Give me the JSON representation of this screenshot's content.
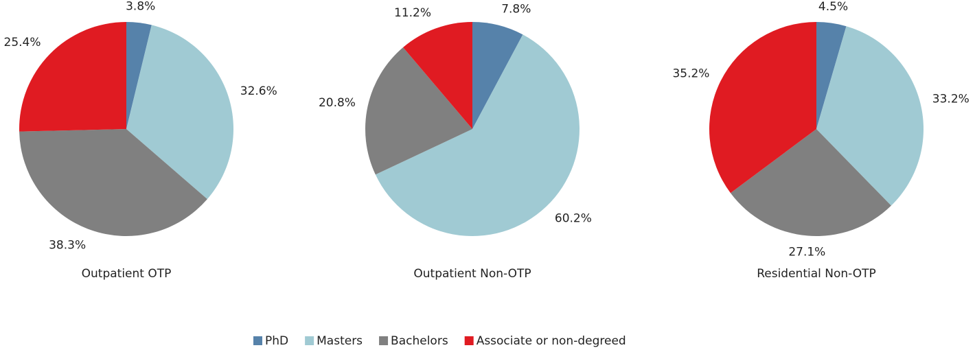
{
  "legend": {
    "categories": [
      "PhD",
      "Masters",
      "Bachelors",
      "Associate or non-degreed"
    ],
    "colors": [
      "#5682aa",
      "#a0cad3",
      "#808080",
      "#e01b22"
    ]
  },
  "chart_data": [
    {
      "type": "pie",
      "title": "Outpatient OTP",
      "values": [
        3.8,
        32.6,
        38.3,
        25.4
      ],
      "value_labels": [
        "3.8%",
        "32.6%",
        "38.3%",
        "25.4%"
      ]
    },
    {
      "type": "pie",
      "title": "Outpatient Non-OTP",
      "values": [
        7.8,
        60.2,
        20.8,
        11.2
      ],
      "value_labels": [
        "7.8%",
        "60.2%",
        "20.8%",
        "11.2%"
      ]
    },
    {
      "type": "pie",
      "title": "Residential Non-OTP",
      "values": [
        4.5,
        33.2,
        27.1,
        35.2
      ],
      "value_labels": [
        "4.5%",
        "33.2%",
        "27.1%",
        "35.2%"
      ]
    }
  ]
}
